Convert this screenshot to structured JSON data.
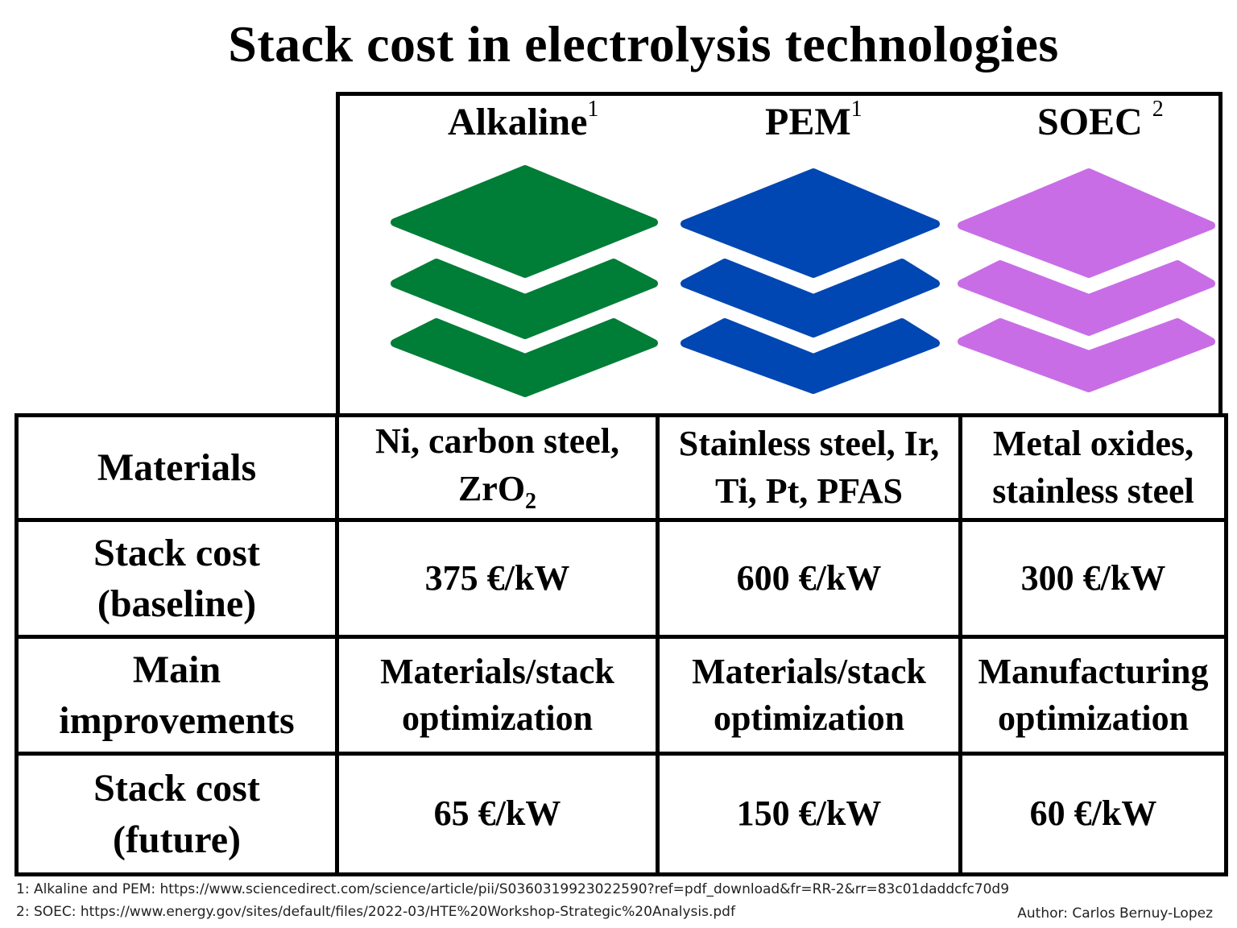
{
  "title": "Stack cost in electrolysis technologies",
  "technologies": [
    {
      "name": "Alkaline",
      "ref": "1",
      "color": "#007d36"
    },
    {
      "name": "PEM",
      "ref": "1",
      "color": "#0047b3"
    },
    {
      "name": "SOEC",
      "ref": "2",
      "color": "#c96de6"
    }
  ],
  "rows": {
    "materials": {
      "label": "Materials",
      "alkaline_1": "Ni, carbon steel,",
      "alkaline_2": "ZrO",
      "alkaline_2_sub": "2",
      "pem_1": "Stainless steel, Ir,",
      "pem_2": "Ti, Pt, PFAS",
      "soec_1": "Metal oxides,",
      "soec_2": "stainless steel"
    },
    "cost_baseline": {
      "label_1": "Stack cost",
      "label_2": "(baseline)",
      "alkaline": "375 €/kW",
      "pem": "600 €/kW",
      "soec": "300 €/kW"
    },
    "improvements": {
      "label_1": "Main",
      "label_2": "improvements",
      "alkaline_1": "Materials/stack",
      "alkaline_2": "optimization",
      "pem_1": "Materials/stack",
      "pem_2": "optimization",
      "soec_1": "Manufacturing",
      "soec_2": "optimization"
    },
    "cost_future": {
      "label_1": "Stack cost",
      "label_2": "(future)",
      "alkaline": "65 €/kW",
      "pem": "150 €/kW",
      "soec": "60 €/kW"
    }
  },
  "footnotes": {
    "note1": "1: Alkaline and PEM: https://www.sciencedirect.com/science/article/pii/S0360319923022590?ref=pdf_download&fr=RR-2&rr=83c01daddcfc70d9",
    "note2": "2: SOEC: https://www.energy.gov/sites/default/files/2022-03/HTE%20Workshop-Strategic%20Analysis.pdf",
    "author": "Author: Carlos Bernuy-Lopez"
  }
}
